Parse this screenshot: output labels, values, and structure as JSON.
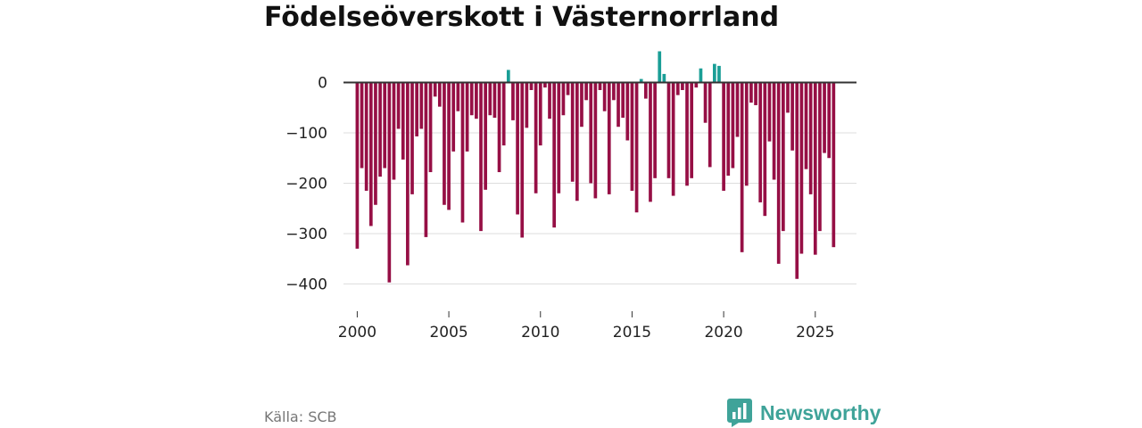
{
  "title": "Födelseöverskott i Västernorrland",
  "source": "Källa: SCB",
  "brand": {
    "name": "Newsworthy",
    "icon": "bar-chart-logo-icon",
    "color": "#3fa399"
  },
  "chart_data": {
    "type": "bar",
    "title": "Födelseöverskott i Västernorrland",
    "xlabel": "",
    "ylabel": "",
    "frequency": "quarterly",
    "x_start": 2000.0,
    "x_step": 0.25,
    "x_ticks": [
      2000,
      2005,
      2010,
      2015,
      2020,
      2025
    ],
    "x_tick_labels": [
      "2000",
      "2005",
      "2010",
      "2015",
      "2020",
      "2025"
    ],
    "xlim": [
      1999.25,
      2027.25
    ],
    "y_ticks": [
      0,
      -100,
      -200,
      -300,
      -400
    ],
    "y_tick_labels": [
      "0",
      "−100",
      "−200",
      "−300",
      "−400"
    ],
    "ylim": [
      -440,
      70
    ],
    "grid": true,
    "colors": {
      "positive": "#1a9e96",
      "negative": "#960f45",
      "zero_line": "#333333",
      "grid": "#dddddd"
    },
    "values": [
      -330,
      -170,
      -215,
      -285,
      -243,
      -187,
      -170,
      -397,
      -193,
      -92,
      -153,
      -363,
      -222,
      -107,
      -92,
      -307,
      -178,
      -28,
      -48,
      -243,
      -253,
      -137,
      -57,
      -278,
      -137,
      -65,
      -72,
      -295,
      -213,
      -65,
      -70,
      -178,
      -125,
      25,
      -75,
      -262,
      -308,
      -90,
      -15,
      -220,
      -125,
      -10,
      -72,
      -288,
      -220,
      -65,
      -25,
      -197,
      -235,
      -88,
      -35,
      -200,
      -230,
      -15,
      -57,
      -222,
      -35,
      -88,
      -70,
      -115,
      -215,
      -258,
      7,
      -32,
      -237,
      -190,
      62,
      17,
      -190,
      -225,
      -25,
      -15,
      -205,
      -190,
      -10,
      28,
      -80,
      -168,
      37,
      33,
      -215,
      -185,
      -170,
      -108,
      -337,
      -205,
      -40,
      -45,
      -238,
      -265,
      -117,
      -193,
      -360,
      -295,
      -60,
      -135,
      -390,
      -340,
      -172,
      -222,
      -342,
      -295,
      -140,
      -150,
      -327
    ]
  }
}
